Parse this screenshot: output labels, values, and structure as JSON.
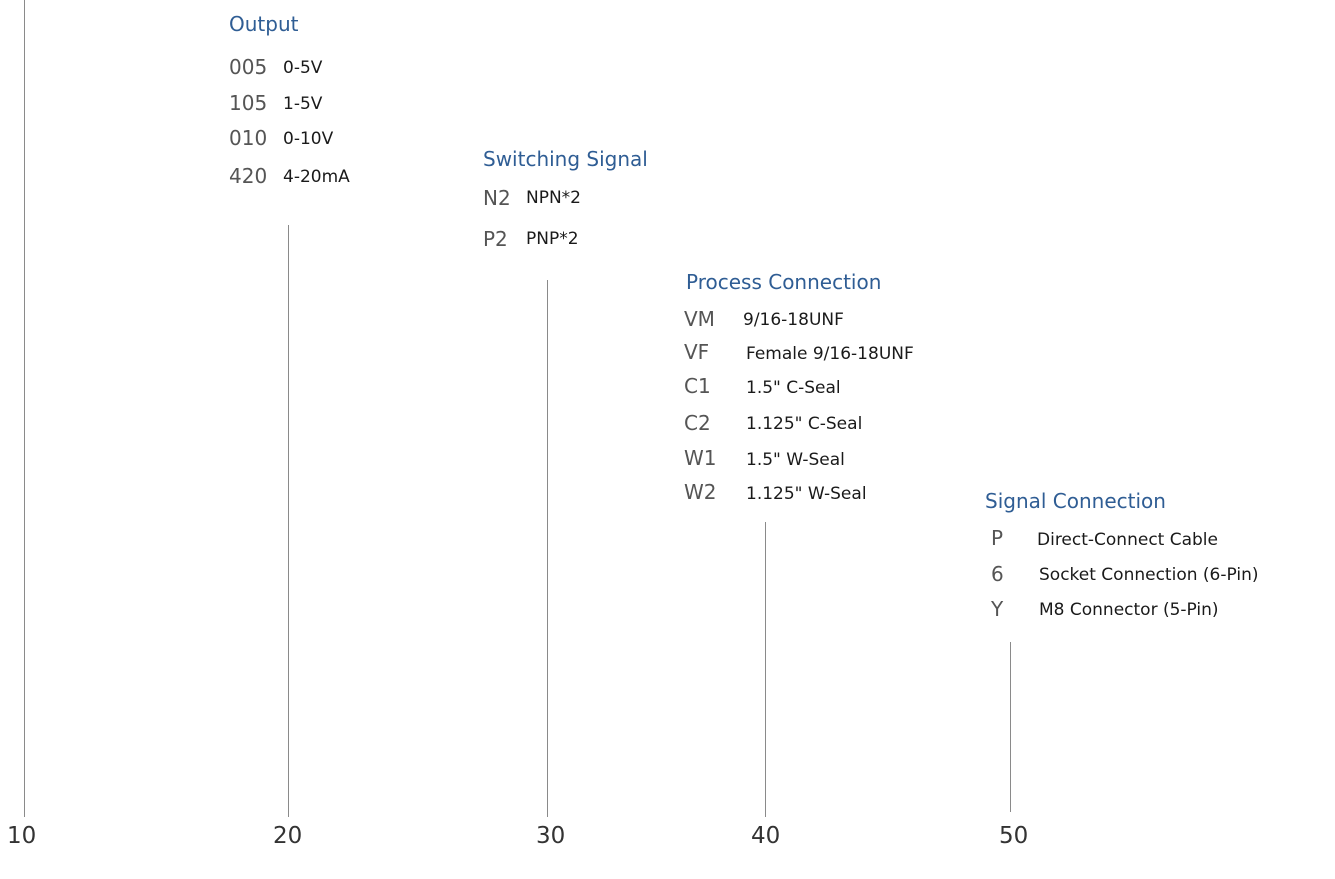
{
  "groups": {
    "output": {
      "heading": "Output",
      "options": [
        {
          "code": "005",
          "desc": "0-5V"
        },
        {
          "code": "105",
          "desc": "1-5V"
        },
        {
          "code": "010",
          "desc": "0-10V"
        },
        {
          "code": "420",
          "desc": "4-20mA"
        }
      ]
    },
    "switching": {
      "heading": "Switching Signal",
      "options": [
        {
          "code": "N2",
          "desc": "NPN*2"
        },
        {
          "code": "P2",
          "desc": "PNP*2"
        }
      ]
    },
    "process": {
      "heading": "Process Connection",
      "options": [
        {
          "code": "VM",
          "desc": "9/16-18UNF"
        },
        {
          "code": "VF",
          "desc": "Female 9/16-18UNF"
        },
        {
          "code": "C1",
          "desc": "1.5\" C-Seal"
        },
        {
          "code": "C2",
          "desc": "1.125\" C-Seal"
        },
        {
          "code": "W1",
          "desc": "1.5\" W-Seal"
        },
        {
          "code": "W2",
          "desc": "1.125\" W-Seal"
        }
      ]
    },
    "signal": {
      "heading": "Signal Connection",
      "options": [
        {
          "code": "P",
          "desc": "Direct-Connect Cable"
        },
        {
          "code": "6",
          "desc": "Socket Connection (6-Pin)"
        },
        {
          "code": "Y",
          "desc": "M8 Connector (5-Pin)"
        }
      ]
    }
  },
  "positions": [
    "10",
    "20",
    "30",
    "40",
    "50"
  ],
  "colors": {
    "heading": "#2f5d94",
    "code": "#555555",
    "desc": "#1a1a1a",
    "line": "#8a8a8a"
  }
}
